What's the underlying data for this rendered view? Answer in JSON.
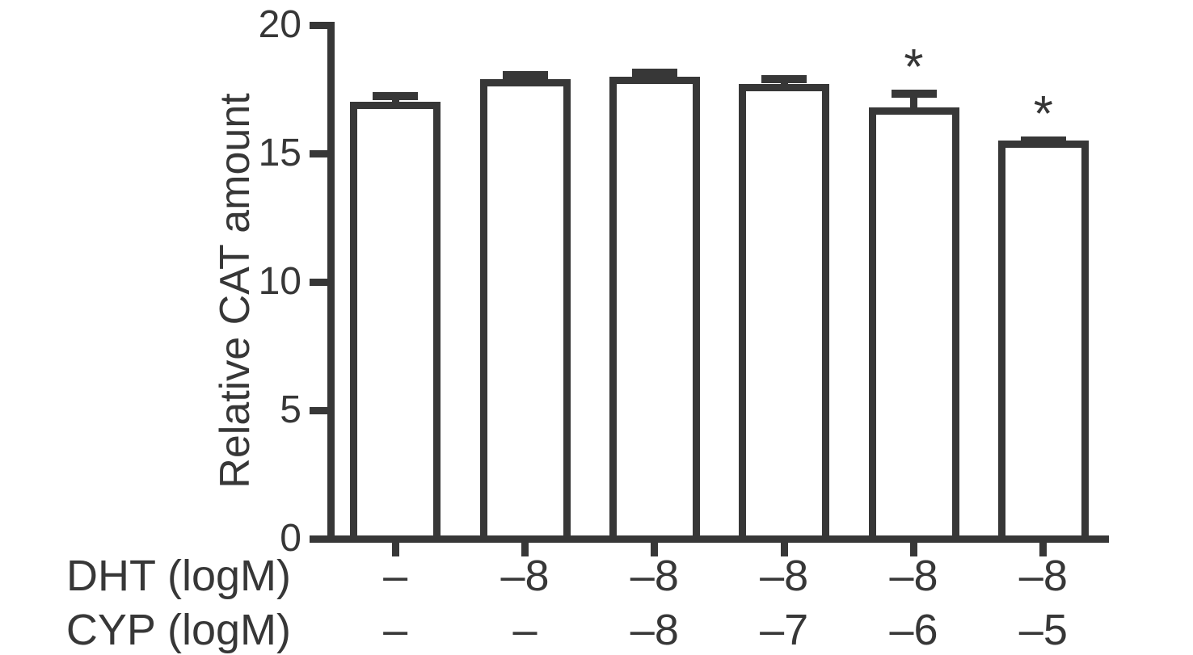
{
  "figure": {
    "background": "#ffffff",
    "ink_color": "#373737"
  },
  "chart_data": {
    "type": "bar",
    "title": "",
    "xlabel": "",
    "ylabel": "Relative CAT amount",
    "ylim": [
      0,
      20
    ],
    "yticks": [
      0,
      5,
      10,
      15,
      20
    ],
    "grid": false,
    "legend": false,
    "bar_fill": "#ffffff",
    "bar_border_color": "#373737",
    "series": [
      {
        "name": "Relative CAT amount",
        "values": [
          17.0,
          17.9,
          18.0,
          17.7,
          16.8,
          15.5
        ],
        "errors": [
          0.4,
          0.3,
          0.3,
          0.35,
          0.7,
          0.15
        ],
        "significance": [
          "",
          "",
          "",
          "",
          "*",
          "*"
        ]
      }
    ],
    "x_annotation_rows": [
      {
        "label": "DHT (logM)",
        "values": [
          "–",
          "–8",
          "–8",
          "–8",
          "–8",
          "–8"
        ]
      },
      {
        "label": "CYP (logM)",
        "values": [
          "–",
          "–",
          "–8",
          "–7",
          "–6",
          "–5"
        ]
      }
    ]
  }
}
